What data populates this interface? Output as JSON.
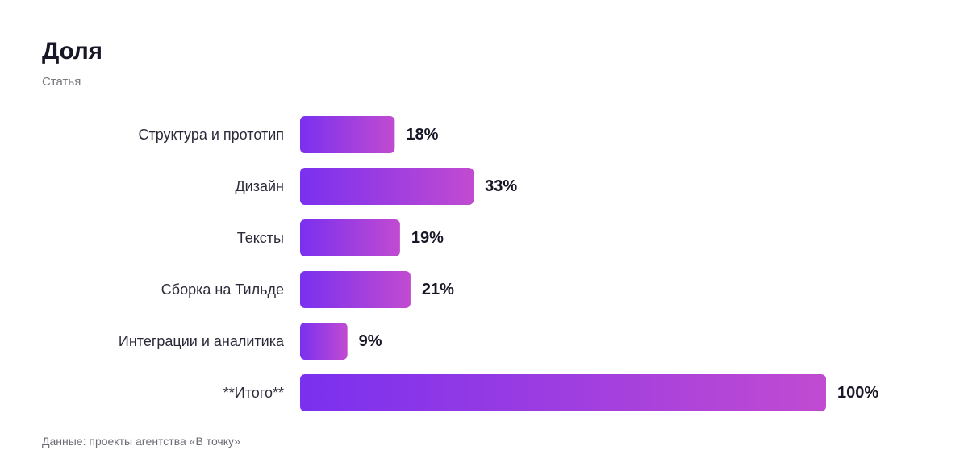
{
  "header": {
    "title": "Доля",
    "subtitle": "Статья"
  },
  "footer": {
    "source": "Данные: проекты агентства «В точку»"
  },
  "colors": {
    "bar_gradient_start": "#7a30ef",
    "bar_gradient_end": "#c14bd1",
    "category_text": "#2b2b3a",
    "value_text": "#171727"
  },
  "chart_data": {
    "type": "bar",
    "orientation": "horizontal",
    "categories": [
      "Структура и прототип",
      "Дизайн",
      "Тексты",
      "Сборка на Тильде",
      "Интеграции и аналитика",
      "**Итого**"
    ],
    "values": [
      18,
      33,
      19,
      21,
      9,
      100
    ],
    "value_labels": [
      "18%",
      "33%",
      "19%",
      "21%",
      "9%",
      "100%"
    ],
    "unit": "%",
    "xlim": [
      0,
      100
    ],
    "grid": false,
    "legend": "none"
  }
}
